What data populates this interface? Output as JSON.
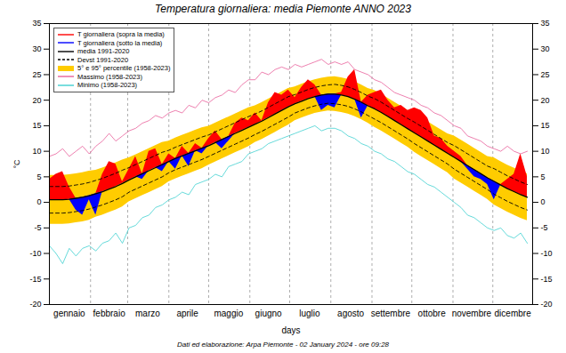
{
  "chart_data": {
    "type": "area",
    "title": "Temperatura  giornaliera: media Piemonte ANNO 2023",
    "caption": "Dati ed elaborazione: Arpa Piemonte - 02 January 2024 - ore 09:28",
    "x_label": "days",
    "y_label": "°C",
    "x": [
      1,
      6,
      11,
      16,
      21,
      26,
      31,
      36,
      41,
      46,
      51,
      56,
      61,
      66,
      71,
      76,
      81,
      86,
      91,
      96,
      101,
      106,
      111,
      116,
      121,
      126,
      131,
      136,
      141,
      146,
      151,
      156,
      161,
      166,
      171,
      176,
      181,
      186,
      191,
      196,
      201,
      206,
      211,
      216,
      221,
      226,
      231,
      236,
      241,
      246,
      251,
      256,
      261,
      266,
      271,
      276,
      281,
      286,
      291,
      296,
      301,
      306,
      311,
      316,
      321,
      326,
      331,
      336,
      341,
      346,
      351,
      356,
      361
    ],
    "xlim": [
      1,
      365
    ],
    "xticks": [
      {
        "value": 16,
        "label": "gennaio"
      },
      {
        "value": 46,
        "label": "febbraio"
      },
      {
        "value": 75,
        "label": "marzo"
      },
      {
        "value": 105,
        "label": "aprile"
      },
      {
        "value": 136,
        "label": "maggio"
      },
      {
        "value": 166,
        "label": "giugno"
      },
      {
        "value": 197,
        "label": "luglio"
      },
      {
        "value": 228,
        "label": "agosto"
      },
      {
        "value": 258,
        "label": "settembre"
      },
      {
        "value": 289,
        "label": "ottobre"
      },
      {
        "value": 319,
        "label": "novembre"
      },
      {
        "value": 350,
        "label": "dicembre"
      }
    ],
    "month_boundaries": [
      32,
      60,
      91,
      121,
      152,
      182,
      213,
      244,
      274,
      305,
      335
    ],
    "ylim": [
      -20,
      35
    ],
    "yticks": [
      -20,
      -15,
      -10,
      -5,
      0,
      5,
      10,
      15,
      20,
      25,
      30,
      35
    ],
    "grid": true,
    "legend": "top-left",
    "series": [
      {
        "names": [
          "T  giornaliera (sopra la media)",
          "T  giornaliera (sotto la media)"
        ],
        "colors": [
          "#ff0000",
          "#0000ff"
        ],
        "type": "area",
        "values": [
          4.5,
          5.5,
          6.0,
          3.0,
          -1.5,
          -2.5,
          0.5,
          -2.5,
          5.5,
          8.0,
          7.5,
          4.0,
          6.5,
          9.0,
          4.5,
          10.0,
          10.5,
          6.0,
          9.5,
          6.5,
          11.0,
          7.0,
          11.5,
          9.5,
          12.5,
          14.0,
          10.5,
          12.0,
          15.5,
          16.5,
          16.0,
          17.5,
          16.0,
          19.5,
          21.5,
          21.0,
          22.0,
          20.5,
          22.5,
          24.0,
          23.0,
          18.0,
          19.0,
          18.5,
          21.5,
          24.5,
          26.0,
          16.5,
          21.0,
          21.5,
          22.0,
          20.0,
          18.5,
          19.0,
          18.0,
          18.5,
          18.0,
          16.5,
          13.0,
          12.5,
          11.0,
          10.0,
          9.0,
          6.5,
          5.0,
          4.5,
          3.5,
          0.5,
          3.5,
          4.5,
          5.5,
          9.5,
          5.0
        ]
      },
      {
        "name": "media 1991-2020",
        "color": "#000000",
        "type": "line",
        "values": [
          0.5,
          0.5,
          0.5,
          0.6,
          0.8,
          1.0,
          1.3,
          1.7,
          2.1,
          2.6,
          3.1,
          3.7,
          4.4,
          5.0,
          5.6,
          6.2,
          6.8,
          7.4,
          8.0,
          8.6,
          9.1,
          9.6,
          10.1,
          10.6,
          11.1,
          11.7,
          12.3,
          12.9,
          13.5,
          14.1,
          14.7,
          15.3,
          15.9,
          16.6,
          17.3,
          18.0,
          18.7,
          19.3,
          19.8,
          20.3,
          20.7,
          21.0,
          21.2,
          21.2,
          21.0,
          20.7,
          20.2,
          19.6,
          18.9,
          18.3,
          17.6,
          16.8,
          16.0,
          15.2,
          14.4,
          13.6,
          12.8,
          12.0,
          11.2,
          10.4,
          9.6,
          8.8,
          8.0,
          7.2,
          6.4,
          5.6,
          4.8,
          4.1,
          3.4,
          2.7,
          2.1,
          1.5,
          1.0
        ]
      },
      {
        "name": "Devst 1991-2020",
        "color": "#000000",
        "type": "line",
        "line_style": "dashed",
        "low": [
          -2.1,
          -2.1,
          -2.1,
          -2.0,
          -1.8,
          -1.6,
          -1.3,
          -0.9,
          -0.5,
          0.0,
          0.5,
          1.1,
          2.0,
          2.6,
          3.2,
          3.8,
          4.4,
          5.0,
          5.8,
          6.4,
          6.9,
          7.4,
          7.9,
          8.4,
          9.0,
          9.6,
          10.2,
          10.8,
          11.4,
          12.0,
          12.6,
          13.3,
          13.9,
          14.6,
          15.3,
          16.0,
          16.7,
          17.5,
          18.0,
          18.5,
          18.9,
          19.2,
          19.4,
          19.3,
          19.1,
          18.8,
          18.3,
          17.7,
          17.0,
          16.3,
          15.6,
          14.8,
          14.0,
          13.2,
          12.4,
          11.5,
          10.7,
          9.9,
          9.1,
          8.3,
          7.5,
          6.5,
          5.7,
          4.9,
          4.1,
          3.3,
          2.5,
          1.6,
          0.9,
          0.2,
          -0.4,
          -1.0,
          -1.5
        ],
        "high": [
          3.1,
          3.1,
          3.1,
          3.2,
          3.4,
          3.6,
          3.9,
          4.3,
          4.7,
          5.2,
          5.7,
          6.3,
          6.8,
          7.4,
          8.0,
          8.6,
          9.2,
          9.8,
          10.2,
          10.8,
          11.3,
          11.8,
          12.3,
          12.8,
          13.2,
          13.8,
          14.4,
          15.0,
          15.6,
          16.2,
          16.8,
          17.3,
          17.9,
          18.6,
          19.3,
          20.0,
          20.7,
          21.1,
          21.6,
          22.1,
          22.5,
          22.8,
          23.0,
          23.1,
          22.9,
          22.6,
          22.1,
          21.5,
          20.8,
          20.3,
          19.6,
          18.8,
          18.0,
          17.2,
          16.4,
          15.7,
          14.9,
          14.1,
          13.3,
          12.5,
          11.7,
          11.1,
          10.3,
          9.5,
          8.7,
          7.9,
          7.1,
          6.6,
          5.9,
          5.2,
          4.6,
          4.0,
          3.5
        ]
      },
      {
        "name": "5° e 95° percentile (1958-2023)",
        "color": "#ffcc00",
        "type": "band",
        "low": [
          -4.3,
          -4.3,
          -4.3,
          -4.2,
          -4.0,
          -3.8,
          -3.5,
          -2.9,
          -2.5,
          -2.0,
          -1.5,
          -0.9,
          0.1,
          0.7,
          1.3,
          1.9,
          2.5,
          3.1,
          4.0,
          4.6,
          5.1,
          5.6,
          6.1,
          6.6,
          7.3,
          7.9,
          8.5,
          9.1,
          9.7,
          10.3,
          10.9,
          11.7,
          12.3,
          13.0,
          13.7,
          14.4,
          15.1,
          16.0,
          16.5,
          17.0,
          17.4,
          17.7,
          17.9,
          17.8,
          17.6,
          17.3,
          16.8,
          16.2,
          15.5,
          14.7,
          14.0,
          13.2,
          12.4,
          11.6,
          10.8,
          9.8,
          9.0,
          8.2,
          7.4,
          6.6,
          5.8,
          4.6,
          3.8,
          3.0,
          2.2,
          1.4,
          0.6,
          -0.5,
          -1.2,
          -1.9,
          -2.5,
          -3.1,
          -3.6
        ],
        "high": [
          5.3,
          5.3,
          5.3,
          5.4,
          5.6,
          5.8,
          6.1,
          6.3,
          6.7,
          7.2,
          7.7,
          8.3,
          8.7,
          9.3,
          9.9,
          10.5,
          11.1,
          11.7,
          12.0,
          12.6,
          13.1,
          13.6,
          14.1,
          14.6,
          14.9,
          15.5,
          16.1,
          16.7,
          17.3,
          17.9,
          18.5,
          18.9,
          19.5,
          20.2,
          20.9,
          21.6,
          22.3,
          22.6,
          23.1,
          23.6,
          24.0,
          24.3,
          24.5,
          24.6,
          24.4,
          24.1,
          23.6,
          23.0,
          22.3,
          21.9,
          21.2,
          20.4,
          19.6,
          18.8,
          18.0,
          17.4,
          16.6,
          15.8,
          15.0,
          14.2,
          13.4,
          13.0,
          12.2,
          11.4,
          10.6,
          9.8,
          9.0,
          8.7,
          8.0,
          7.3,
          6.7,
          6.1,
          5.6
        ]
      },
      {
        "name": "Massimo (1958-2023)",
        "color": "#e8609a",
        "type": "line",
        "values": [
          9.0,
          9.5,
          10.5,
          9.0,
          10.0,
          11.0,
          9.5,
          11.0,
          12.0,
          13.5,
          12.0,
          13.0,
          14.0,
          14.5,
          15.5,
          16.0,
          17.0,
          16.5,
          17.5,
          18.0,
          17.5,
          19.0,
          18.5,
          20.0,
          19.5,
          20.5,
          21.0,
          22.0,
          21.5,
          23.0,
          24.0,
          24.0,
          25.5,
          25.0,
          26.0,
          26.5,
          26.0,
          27.0,
          26.5,
          27.0,
          27.5,
          28.0,
          27.0,
          27.5,
          27.0,
          27.5,
          26.0,
          25.5,
          25.0,
          24.0,
          23.5,
          22.5,
          21.5,
          21.0,
          20.5,
          20.0,
          19.0,
          18.5,
          17.5,
          17.0,
          16.0,
          15.0,
          14.5,
          13.0,
          12.5,
          12.0,
          11.0,
          10.5,
          10.0,
          11.0,
          10.0,
          9.5,
          10.0
        ]
      },
      {
        "name": "Minimo (1958-2023)",
        "color": "#40d0d0",
        "type": "line",
        "values": [
          -8.5,
          -10.0,
          -12.0,
          -9.0,
          -10.5,
          -9.0,
          -8.5,
          -9.5,
          -8.0,
          -7.5,
          -6.0,
          -8.0,
          -5.0,
          -4.5,
          -3.0,
          -2.5,
          -1.0,
          -0.5,
          0.5,
          1.0,
          2.0,
          1.5,
          3.5,
          4.0,
          4.5,
          5.5,
          5.0,
          7.0,
          7.5,
          8.0,
          9.5,
          10.0,
          10.5,
          11.5,
          12.0,
          12.5,
          13.0,
          13.5,
          14.0,
          14.5,
          15.0,
          14.0,
          14.5,
          14.5,
          14.0,
          13.0,
          12.5,
          11.5,
          11.0,
          10.0,
          9.5,
          8.5,
          8.0,
          7.0,
          6.0,
          5.5,
          4.5,
          3.5,
          3.0,
          2.0,
          1.0,
          0.0,
          -1.0,
          -2.5,
          -3.0,
          -4.0,
          -5.0,
          -5.5,
          -5.0,
          -6.5,
          -7.0,
          -6.0,
          -8.0
        ]
      }
    ]
  }
}
